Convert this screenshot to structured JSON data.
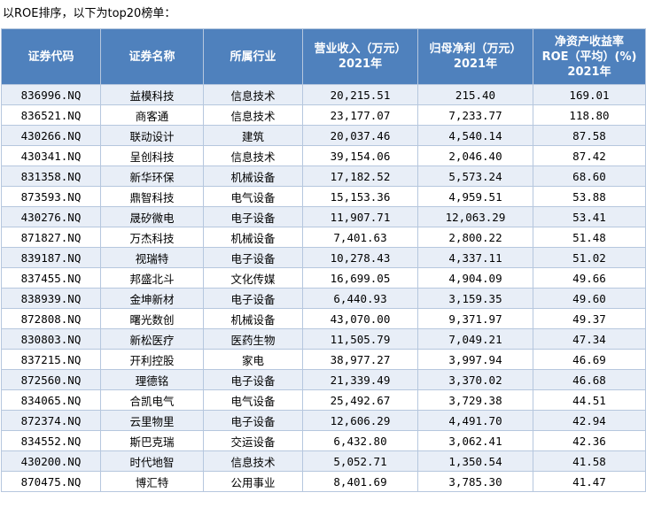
{
  "caption": "以ROE排序，以下为top20榜单：",
  "headers": {
    "code": "证券代码",
    "name": "证券名称",
    "industry": "所属行业",
    "revenue": [
      "营业收入（万元）",
      "2021年"
    ],
    "profit": [
      "归母净利（万元）",
      "2021年"
    ],
    "roe": [
      "净资产收益率",
      "ROE（平均）(%)",
      "2021年"
    ]
  },
  "rows": [
    {
      "code": "836996.NQ",
      "name": "益模科技",
      "industry": "信息技术",
      "revenue": "20,215.51",
      "profit": "215.40",
      "roe": "169.01"
    },
    {
      "code": "836521.NQ",
      "name": "商客通",
      "industry": "信息技术",
      "revenue": "23,177.07",
      "profit": "7,233.77",
      "roe": "118.80"
    },
    {
      "code": "430266.NQ",
      "name": "联动设计",
      "industry": "建筑",
      "revenue": "20,037.46",
      "profit": "4,540.14",
      "roe": "87.58"
    },
    {
      "code": "430341.NQ",
      "name": "呈创科技",
      "industry": "信息技术",
      "revenue": "39,154.06",
      "profit": "2,046.40",
      "roe": "87.42"
    },
    {
      "code": "831358.NQ",
      "name": "新华环保",
      "industry": "机械设备",
      "revenue": "17,182.52",
      "profit": "5,573.24",
      "roe": "68.60"
    },
    {
      "code": "873593.NQ",
      "name": "鼎智科技",
      "industry": "电气设备",
      "revenue": "15,153.36",
      "profit": "4,959.51",
      "roe": "53.88"
    },
    {
      "code": "430276.NQ",
      "name": "晟矽微电",
      "industry": "电子设备",
      "revenue": "11,907.71",
      "profit": "12,063.29",
      "roe": "53.41"
    },
    {
      "code": "871827.NQ",
      "name": "万杰科技",
      "industry": "机械设备",
      "revenue": "7,401.63",
      "profit": "2,800.22",
      "roe": "51.48"
    },
    {
      "code": "839187.NQ",
      "name": "视瑞特",
      "industry": "电子设备",
      "revenue": "10,278.43",
      "profit": "4,337.11",
      "roe": "51.02"
    },
    {
      "code": "837455.NQ",
      "name": "邦盛北斗",
      "industry": "文化传媒",
      "revenue": "16,699.05",
      "profit": "4,904.09",
      "roe": "49.66"
    },
    {
      "code": "838939.NQ",
      "name": "金坤新材",
      "industry": "电子设备",
      "revenue": "6,440.93",
      "profit": "3,159.35",
      "roe": "49.60"
    },
    {
      "code": "872808.NQ",
      "name": "曙光数创",
      "industry": "机械设备",
      "revenue": "43,070.00",
      "profit": "9,371.97",
      "roe": "49.37"
    },
    {
      "code": "830803.NQ",
      "name": "新松医疗",
      "industry": "医药生物",
      "revenue": "11,505.79",
      "profit": "7,049.21",
      "roe": "47.34"
    },
    {
      "code": "837215.NQ",
      "name": "开利控股",
      "industry": "家电",
      "revenue": "38,977.27",
      "profit": "3,997.94",
      "roe": "46.69"
    },
    {
      "code": "872560.NQ",
      "name": "理德铭",
      "industry": "电子设备",
      "revenue": "21,339.49",
      "profit": "3,370.02",
      "roe": "46.68"
    },
    {
      "code": "834065.NQ",
      "name": "合凯电气",
      "industry": "电气设备",
      "revenue": "25,492.67",
      "profit": "3,729.38",
      "roe": "44.51"
    },
    {
      "code": "872374.NQ",
      "name": "云里物里",
      "industry": "电子设备",
      "revenue": "12,606.29",
      "profit": "4,491.70",
      "roe": "42.94"
    },
    {
      "code": "834552.NQ",
      "name": "斯巴克瑞",
      "industry": "交运设备",
      "revenue": "6,432.80",
      "profit": "3,062.41",
      "roe": "42.36"
    },
    {
      "code": "430200.NQ",
      "name": "时代地智",
      "industry": "信息技术",
      "revenue": "5,052.71",
      "profit": "1,350.54",
      "roe": "41.58"
    },
    {
      "code": "870475.NQ",
      "name": "博汇特",
      "industry": "公用事业",
      "revenue": "8,401.69",
      "profit": "3,785.30",
      "roe": "41.47"
    }
  ]
}
